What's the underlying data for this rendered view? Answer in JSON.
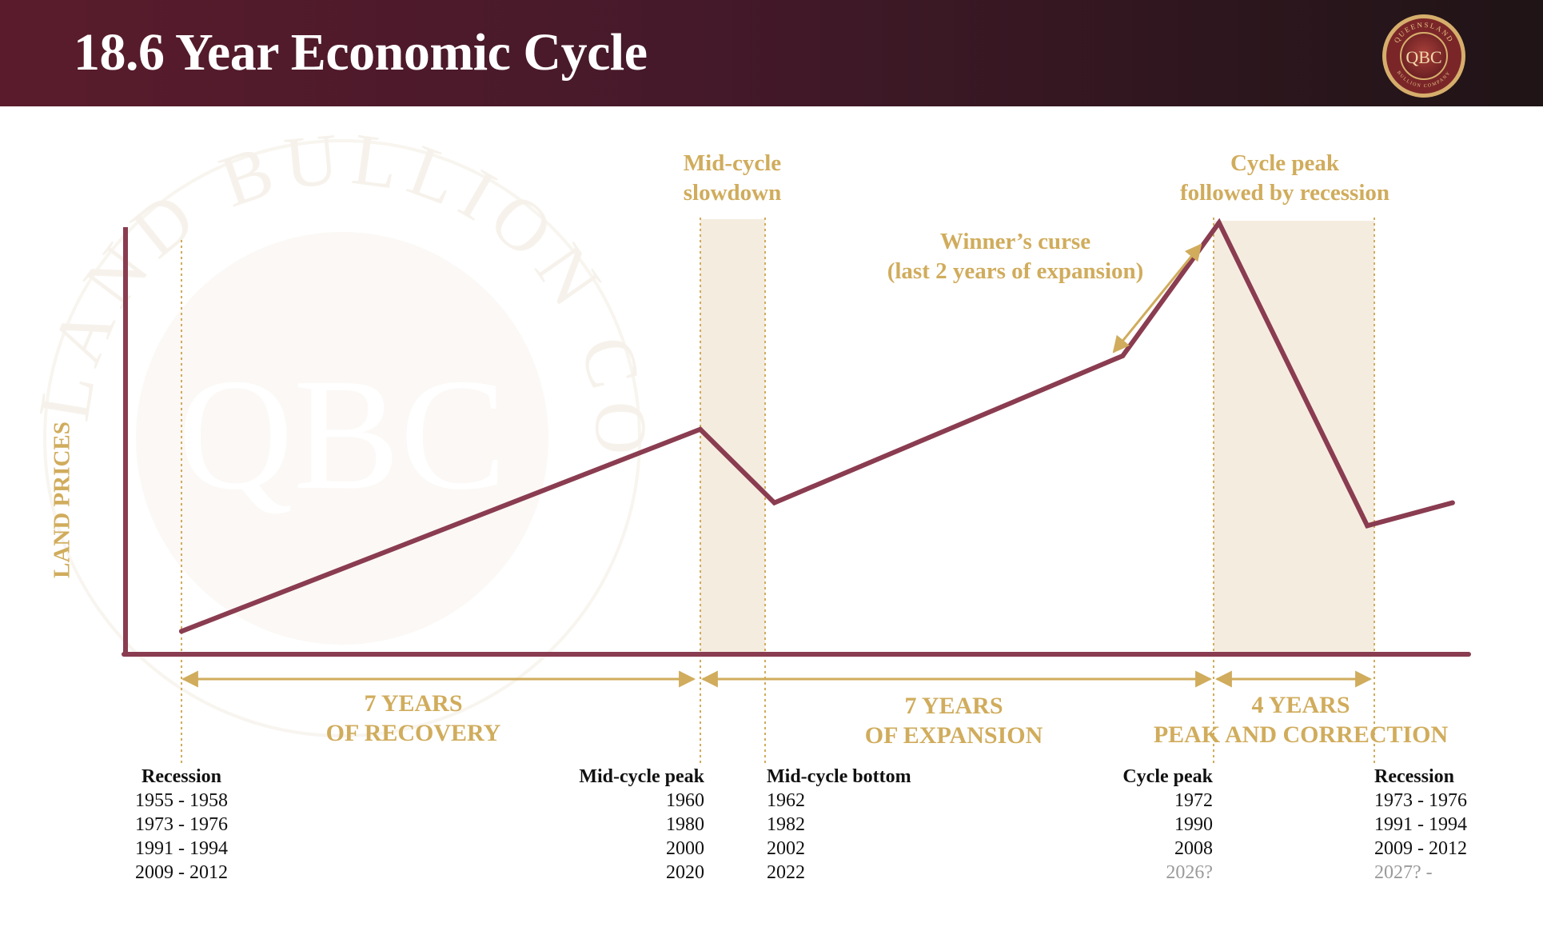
{
  "header": {
    "title": "18.6 Year Economic Cycle"
  },
  "logo": {
    "ring_text": "QUEENSLAND BULLION COMPANY",
    "monogram": "QBC"
  },
  "chart_data": {
    "type": "line",
    "ylabel": "LAND PRICES",
    "series": [
      {
        "values": [
          {
            "x": 0,
            "y": 0.05
          },
          {
            "x": 7,
            "y": 0.49
          },
          {
            "x": 8,
            "y": 0.33
          },
          {
            "x": 12.7,
            "y": 0.65
          },
          {
            "x": 14,
            "y": 0.94
          },
          {
            "x": 16,
            "y": 0.28
          },
          {
            "x": 17.15,
            "y": 0.33
          }
        ]
      }
    ],
    "shaded_regions": [
      {
        "x": [
          7,
          8
        ],
        "label": "Mid-cycle slowdown"
      },
      {
        "x": [
          14,
          16
        ],
        "label": "Cycle peak followed by recession"
      }
    ],
    "annotations": {
      "mid_cycle": [
        "Mid-cycle",
        "slowdown"
      ],
      "cycle_peak": [
        "Cycle peak",
        "followed by recession"
      ],
      "winners_curse": [
        "Winner’s curse",
        "(last 2 years of expansion)"
      ]
    },
    "phases": [
      {
        "line1": "7 YEARS",
        "line2": "OF RECOVERY"
      },
      {
        "line1": "7 YEARS",
        "line2": "OF EXPANSION"
      },
      {
        "line1": "4 YEARS",
        "line2": "PEAK AND CORRECTION"
      }
    ]
  },
  "timeline": [
    {
      "header": "Recession",
      "rows": [
        "1955 - 1958",
        "1973 - 1976",
        "1991 - 1994",
        "2009 - 2012"
      ]
    },
    {
      "header": "Mid-cycle peak",
      "rows": [
        "1960",
        "1980",
        "2000",
        "2020"
      ]
    },
    {
      "header": "Mid-cycle bottom",
      "rows": [
        "1962",
        "1982",
        "2002",
        "2022"
      ]
    },
    {
      "header": "Cycle peak",
      "rows": [
        "1972",
        "1990",
        "2008",
        "2026?"
      ]
    },
    {
      "header": "Recession",
      "rows": [
        "1973 - 1976",
        "1991 - 1994",
        "2009 - 2012",
        "2027? -"
      ]
    }
  ],
  "colors": {
    "line": "#8a3c50",
    "accent": "#d0ac5c",
    "shade": "#f5ece0",
    "header": "#5a1c2c"
  }
}
